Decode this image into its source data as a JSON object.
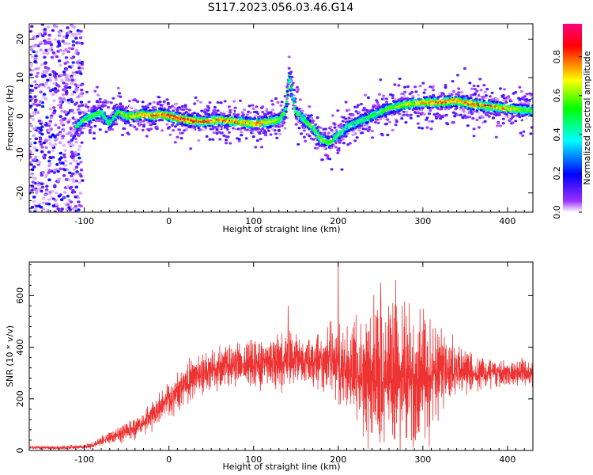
{
  "chart_data": [
    {
      "type": "heatmap",
      "title": "S117.2023.056.03.46.G14",
      "xlabel": "Height of straight line (km)",
      "ylabel": "Frequency (Hz)",
      "xlim": [
        -165,
        430
      ],
      "ylim": [
        -25,
        24
      ],
      "xticks": [
        -100,
        0,
        100,
        200,
        300,
        400
      ],
      "yticks": [
        -20,
        -10,
        0,
        10,
        20
      ],
      "colorbar": {
        "label": "Normalized spectral amplitude",
        "range": [
          0,
          0.97
        ],
        "ticks": [
          0.0,
          0.2,
          0.4,
          0.6,
          0.8
        ],
        "colormap": [
          "#ffffff",
          "#7f00ff",
          "#0000ff",
          "#00ffff",
          "#00ff00",
          "#ffff00",
          "#ff0000",
          "#ff00ff"
        ]
      },
      "ridge": {
        "x": [
          -110,
          -100,
          -90,
          -80,
          -70,
          -60,
          -50,
          -40,
          -30,
          -20,
          -10,
          0,
          20,
          40,
          60,
          80,
          100,
          120,
          130,
          138,
          142,
          150,
          160,
          170,
          180,
          190,
          200,
          210,
          220,
          240,
          260,
          280,
          300,
          320,
          340,
          360,
          380,
          400,
          420,
          430
        ],
        "freq": [
          -3,
          -1,
          0,
          1,
          -2,
          1,
          0,
          0,
          0.5,
          0,
          0.5,
          0,
          -1,
          -1.5,
          -1,
          -1.5,
          -2,
          -1.5,
          -1,
          1,
          10,
          1,
          -1,
          -3,
          -6,
          -7,
          -5,
          -3,
          -2,
          0,
          2,
          3,
          3.5,
          3.5,
          4,
          3,
          2.5,
          2,
          1.5,
          1.5
        ],
        "peak_amplitude": [
          0.55,
          0.6,
          0.65,
          0.6,
          0.55,
          0.6,
          0.75,
          0.8,
          0.85,
          0.9,
          0.9,
          0.95,
          0.92,
          0.9,
          0.85,
          0.88,
          0.85,
          0.8,
          0.7,
          0.65,
          0.55,
          0.6,
          0.6,
          0.65,
          0.7,
          0.65,
          0.6,
          0.55,
          0.55,
          0.6,
          0.65,
          0.75,
          0.85,
          0.9,
          0.92,
          0.9,
          0.85,
          0.8,
          0.65,
          0.6
        ]
      }
    },
    {
      "type": "line",
      "xlabel": "Height of straight line (km)",
      "ylabel": "SNR (10 * v/v)",
      "xlim": [
        -165,
        430
      ],
      "ylim": [
        0,
        730
      ],
      "xticks": [
        -100,
        0,
        100,
        200,
        300,
        400
      ],
      "yticks": [
        0,
        200,
        400,
        600
      ],
      "color": "#ee3333",
      "series": [
        {
          "x": [
            -165,
            -140,
            -120,
            -100,
            -90,
            -80,
            -70,
            -60,
            -50,
            -40,
            -30,
            -20,
            -10,
            0,
            10,
            20,
            30,
            40,
            50,
            60,
            70,
            80,
            90,
            100,
            120,
            140,
            160,
            180,
            190,
            200,
            210,
            220,
            230,
            240,
            250,
            260,
            270,
            280,
            290,
            300,
            310,
            320,
            330,
            340,
            360,
            380,
            400,
            420,
            430
          ],
          "y": [
            12,
            10,
            12,
            15,
            20,
            35,
            50,
            60,
            75,
            90,
            110,
            140,
            170,
            200,
            230,
            260,
            280,
            300,
            310,
            320,
            330,
            330,
            335,
            340,
            350,
            350,
            345,
            340,
            345,
            330,
            310,
            290,
            290,
            280,
            280,
            275,
            280,
            270,
            270,
            280,
            290,
            300,
            300,
            310,
            300,
            305,
            300,
            305,
            300
          ],
          "spread": [
            5,
            5,
            5,
            6,
            8,
            12,
            15,
            20,
            25,
            30,
            35,
            40,
            45,
            50,
            50,
            55,
            55,
            55,
            55,
            55,
            55,
            60,
            60,
            65,
            70,
            75,
            75,
            80,
            90,
            110,
            120,
            140,
            180,
            200,
            210,
            210,
            200,
            200,
            190,
            180,
            150,
            120,
            100,
            80,
            50,
            40,
            40,
            35,
            35
          ]
        }
      ],
      "spikes": [
        {
          "x": 200,
          "y": 730
        },
        {
          "x": 141,
          "y": 560
        },
        {
          "x": 268,
          "y": 660
        },
        {
          "x": 250,
          "y": 650
        }
      ]
    }
  ]
}
